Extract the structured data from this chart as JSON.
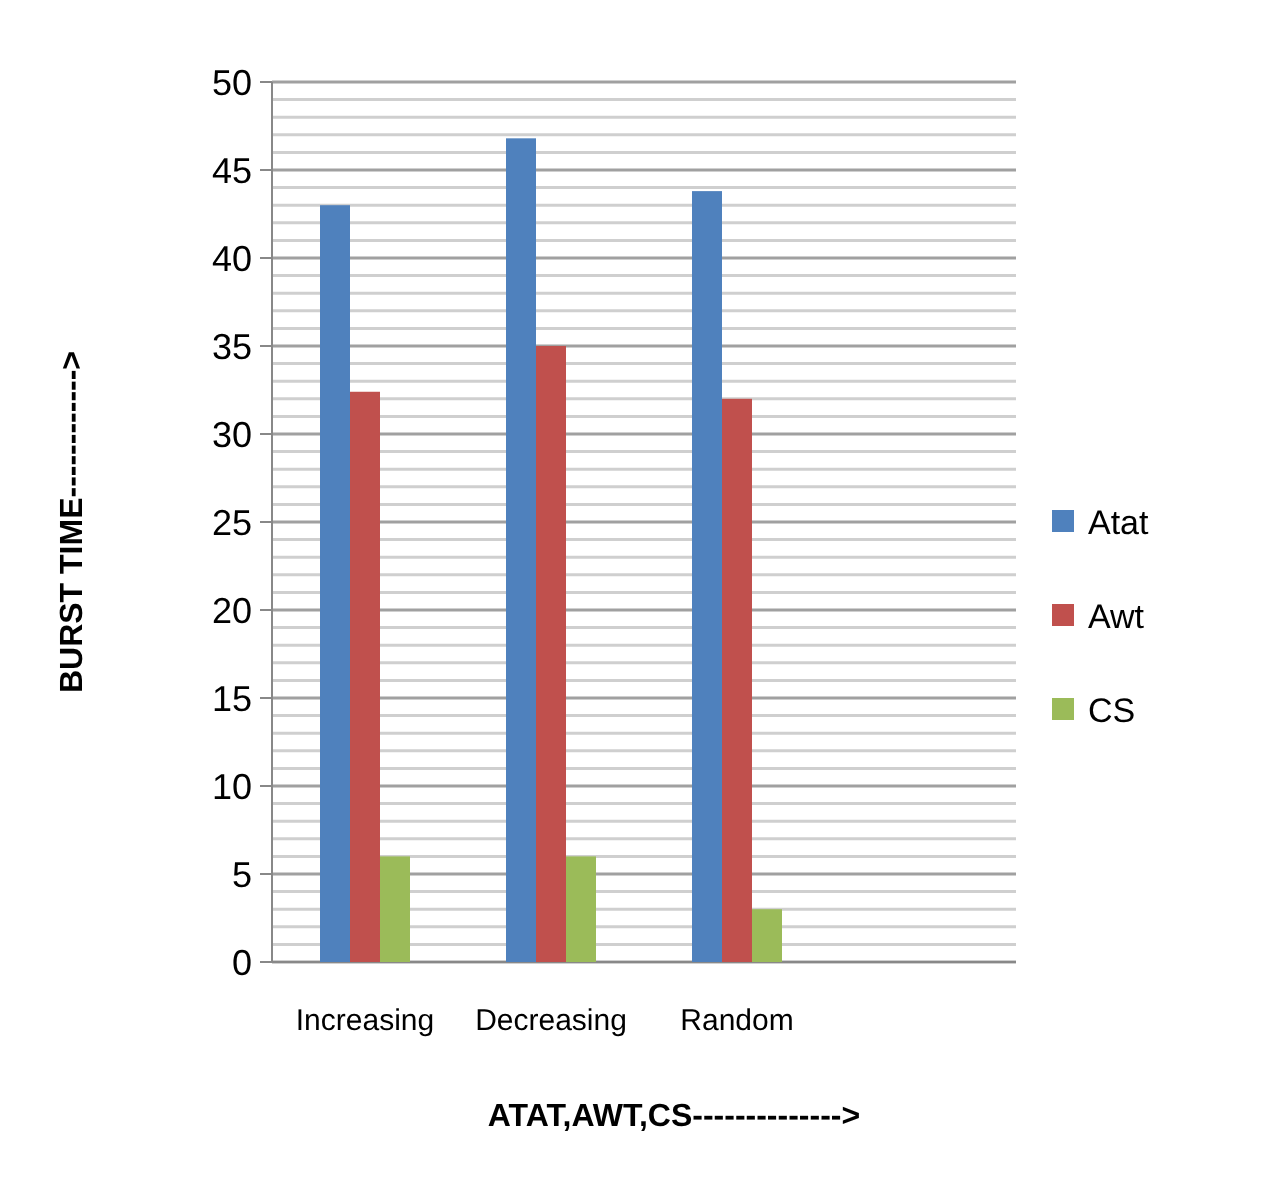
{
  "chart_data": {
    "type": "bar",
    "xlabel": "ATAT,AWT,CS-------------->",
    "ylabel": "BURST TIME------------>",
    "categories": [
      "Increasing",
      "Decreasing",
      "Random",
      null
    ],
    "series": [
      {
        "name": "Atat",
        "color": "#4f81bd",
        "values": [
          43,
          46.8,
          43.8,
          null
        ]
      },
      {
        "name": "Awt",
        "color": "#c0504d",
        "values": [
          32.4,
          35,
          32,
          null
        ]
      },
      {
        "name": "CS",
        "color": "#9bbb59",
        "values": [
          6,
          6,
          3,
          null
        ]
      }
    ],
    "ylim": [
      0,
      50
    ],
    "yticks": [
      0,
      {
        "value": 1,
        "label": null
      },
      {
        "value": 2,
        "label": null
      },
      {
        "value": 3,
        "label": null
      },
      {
        "value": 4,
        "label": null
      },
      5,
      {
        "value": 6,
        "label": null
      },
      {
        "value": 7,
        "label": null
      },
      {
        "value": 8,
        "label": null
      },
      {
        "value": 9,
        "label": null
      },
      10,
      {
        "value": 11,
        "label": null
      },
      {
        "value": 12,
        "label": null
      },
      {
        "value": 13,
        "label": null
      },
      {
        "value": 14,
        "label": null
      },
      15,
      {
        "value": 16,
        "label": null
      },
      {
        "value": 17,
        "label": null
      },
      {
        "value": 18,
        "label": null
      },
      {
        "value": 19,
        "label": null
      },
      20,
      {
        "value": 21,
        "label": null
      },
      {
        "value": 22,
        "label": null
      },
      {
        "value": 23,
        "label": null
      },
      {
        "value": 24,
        "label": null
      },
      25,
      {
        "value": 26,
        "label": null
      },
      {
        "value": 27,
        "label": null
      },
      {
        "value": 28,
        "label": null
      },
      {
        "value": 29,
        "label": null
      },
      30,
      {
        "value": 31,
        "label": null
      },
      {
        "value": 32,
        "label": null
      },
      {
        "value": 33,
        "label": null
      },
      {
        "value": 34,
        "label": null
      },
      35,
      {
        "value": 36,
        "label": null
      },
      {
        "value": 37,
        "label": null
      },
      {
        "value": 38,
        "label": null
      },
      {
        "value": 39,
        "label": null
      },
      40,
      {
        "value": 41,
        "label": null
      },
      {
        "value": 42,
        "label": null
      },
      {
        "value": 43,
        "label": null
      },
      {
        "value": 44,
        "label": null
      },
      45,
      {
        "value": 46,
        "label": null
      },
      {
        "value": 47,
        "label": null
      },
      {
        "value": 48,
        "label": null
      },
      {
        "value": 49,
        "label": null
      },
      50
    ],
    "grid": "y",
    "legend": "right"
  }
}
